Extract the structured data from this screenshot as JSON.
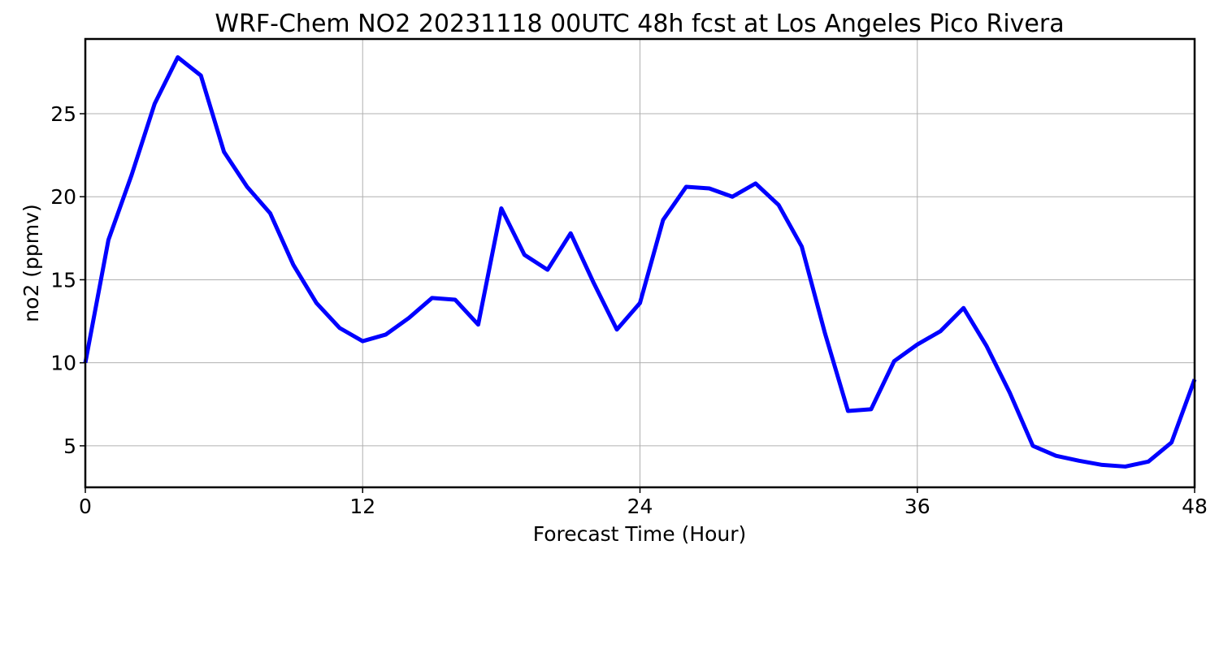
{
  "chart_data": {
    "type": "line",
    "title": "WRF-Chem NO2  20231118 00UTC 48h fcst at Los Angeles Pico Rivera",
    "xlabel": "Forecast Time (Hour)",
    "ylabel": "no2  (ppmv)",
    "xlim": [
      0,
      48
    ],
    "ylim": [
      2.5,
      29.5
    ],
    "xticks": [
      0,
      12,
      24,
      36,
      48
    ],
    "yticks": [
      5,
      10,
      15,
      20,
      25
    ],
    "grid": true,
    "series_color": "#0000ff",
    "series": [
      {
        "x": [
          0,
          1,
          2,
          3,
          4,
          5,
          6,
          7,
          8,
          9,
          10,
          11,
          12,
          13,
          14,
          15,
          16,
          17,
          18,
          19,
          20,
          21,
          22,
          23,
          24,
          25,
          26,
          27,
          28,
          29,
          30,
          31,
          32,
          33,
          34,
          35,
          36,
          37,
          38,
          39,
          40,
          41,
          42,
          43,
          44,
          45,
          46,
          47,
          48
        ],
        "values": [
          10.0,
          17.4,
          21.3,
          25.6,
          28.4,
          27.3,
          22.7,
          20.6,
          19.0,
          15.9,
          13.6,
          12.1,
          11.3,
          11.7,
          12.7,
          13.9,
          13.8,
          12.3,
          19.3,
          16.5,
          15.6,
          17.8,
          14.8,
          12.0,
          13.6,
          18.6,
          20.6,
          20.5,
          20.0,
          20.8,
          19.5,
          17.0,
          11.8,
          7.1,
          7.2,
          10.1,
          11.1,
          11.9,
          13.3,
          11.0,
          8.2,
          5.0,
          4.4,
          4.1,
          3.85,
          3.75,
          4.05,
          5.2,
          9.0
        ]
      }
    ]
  }
}
